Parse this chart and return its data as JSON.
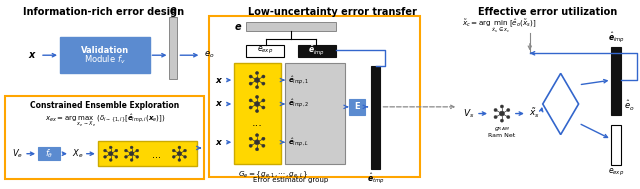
{
  "title_left": "Information-rich error design",
  "title_mid": "Low-uncertainty error transfer",
  "title_right": "Effective error utilization",
  "bg_color": "#ffffff",
  "yellow_color": "#FFD700",
  "blue_color": "#5B8BD0",
  "gray_color": "#AAAAAA",
  "black_color": "#111111",
  "arrow_color": "#3366CC",
  "dashed_color": "#888888",
  "orange_border": "#FFA500",
  "light_gray": "#C8C8C8",
  "box_gray": "#C0C0C0"
}
